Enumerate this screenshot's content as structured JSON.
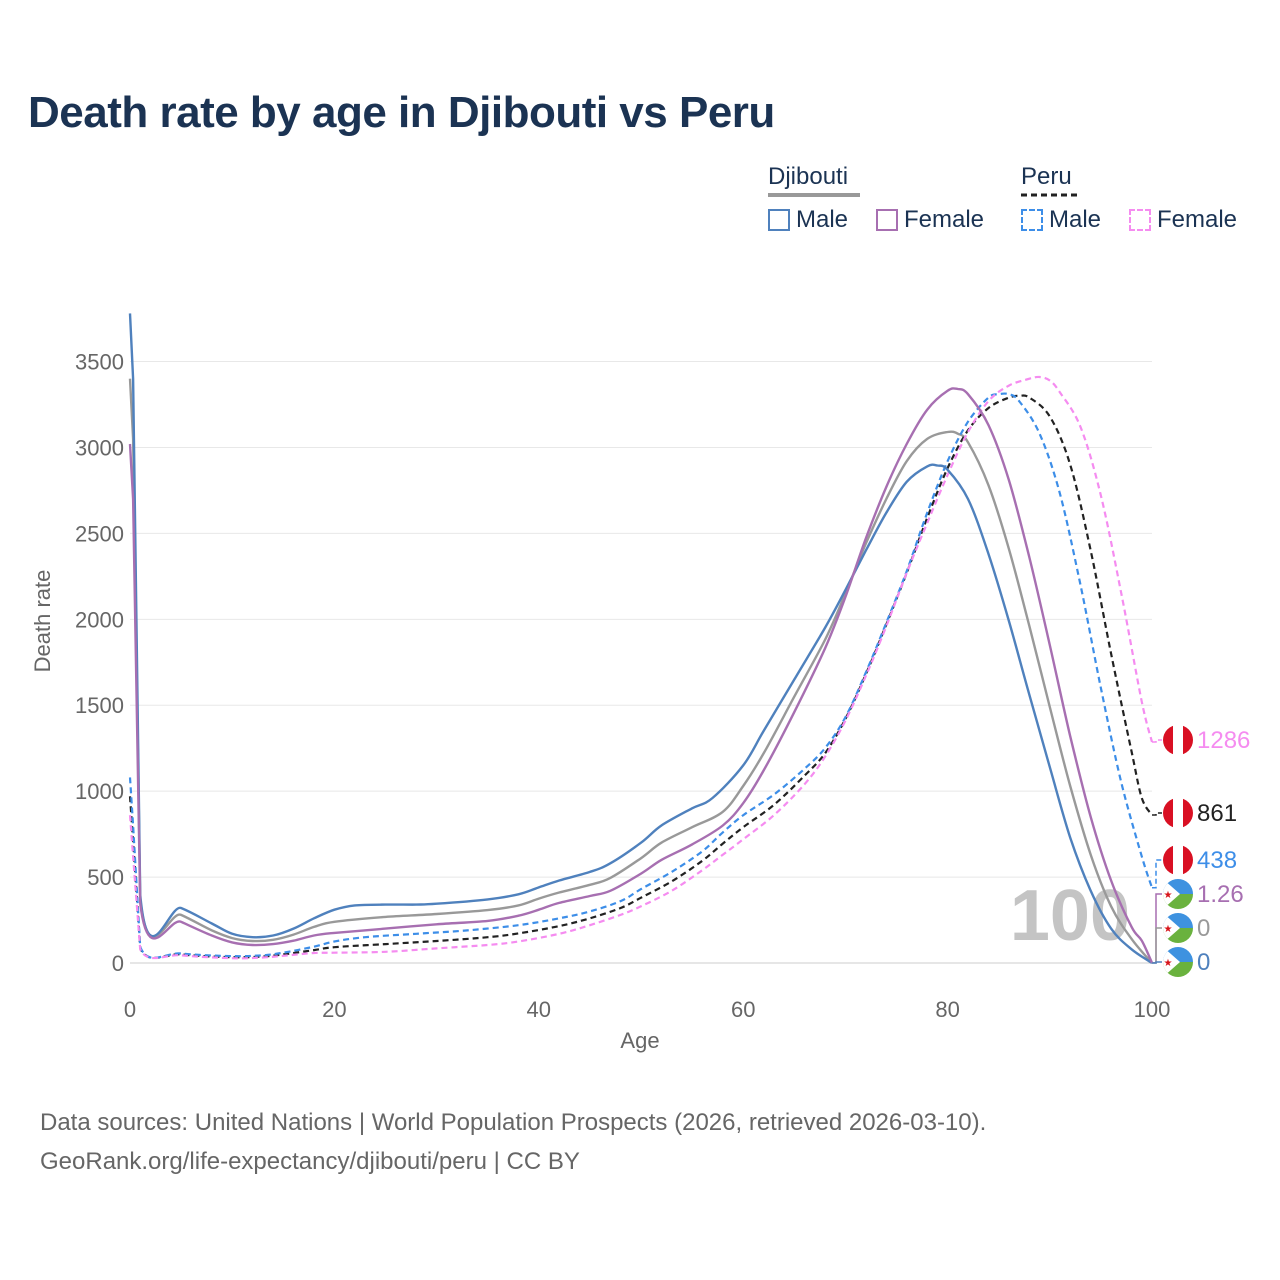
{
  "title": "Death rate by age in Djibouti vs Peru",
  "legend": {
    "groups": [
      {
        "country": "Djibouti",
        "line_color": "#999999",
        "line_style": "solid",
        "items": [
          {
            "label": "Male",
            "color": "#4f81bd",
            "style": "solid"
          },
          {
            "label": "Female",
            "color": "#a76fb1",
            "style": "solid"
          }
        ]
      },
      {
        "country": "Peru",
        "line_color": "#222222",
        "line_style": "dashed",
        "items": [
          {
            "label": "Male",
            "color": "#3d8ee8",
            "style": "dashed"
          },
          {
            "label": "Female",
            "color": "#f58cf0",
            "style": "dashed"
          }
        ]
      }
    ]
  },
  "current_age": "100",
  "end_labels": [
    {
      "text": "1286",
      "color": "#f58cf0",
      "flag": "peru-flag-icon",
      "value": 1286
    },
    {
      "text": "861",
      "color": "#222222",
      "flag": "peru-flag-icon",
      "value": 861
    },
    {
      "text": "438",
      "color": "#3d8ee8",
      "flag": "peru-flag-icon",
      "value": 438
    },
    {
      "text": "1.26",
      "color": "#a76fb1",
      "flag": "djibouti-flag-icon",
      "value": 1.26
    },
    {
      "text": "0",
      "color": "#999999",
      "flag": "djibouti-flag-icon",
      "value": 0
    },
    {
      "text": "0",
      "color": "#4f81bd",
      "flag": "djibouti-flag-icon",
      "value": 0
    }
  ],
  "footer": {
    "line1": "Data sources: United Nations | World Population Prospects (2026, retrieved 2026-03-10).",
    "line2": "GeoRank.org/life-expectancy/djibouti/peru | CC BY"
  },
  "chart_data": {
    "type": "line",
    "title": "Death rate by age in Djibouti vs Peru",
    "xlabel": "Age",
    "ylabel": "Death rate",
    "xlim": [
      0,
      100
    ],
    "ylim": [
      0,
      3800
    ],
    "xticks": [
      0,
      20,
      40,
      60,
      80,
      100
    ],
    "yticks": [
      0,
      500,
      1000,
      1500,
      2000,
      2500,
      3000,
      3500
    ],
    "grid": true,
    "series": [
      {
        "name": "Djibouti Male",
        "color": "#4f81bd",
        "dash": false,
        "points": [
          [
            0,
            3780
          ],
          [
            0.3,
            3400
          ],
          [
            1,
            400
          ],
          [
            5,
            320
          ],
          [
            8,
            230
          ],
          [
            10,
            170
          ],
          [
            12,
            150
          ],
          [
            14,
            160
          ],
          [
            16,
            200
          ],
          [
            18,
            260
          ],
          [
            20,
            310
          ],
          [
            22,
            335
          ],
          [
            25,
            340
          ],
          [
            28,
            340
          ],
          [
            30,
            345
          ],
          [
            35,
            370
          ],
          [
            38,
            400
          ],
          [
            40,
            440
          ],
          [
            42,
            480
          ],
          [
            45,
            530
          ],
          [
            47,
            580
          ],
          [
            50,
            700
          ],
          [
            52,
            800
          ],
          [
            55,
            900
          ],
          [
            57,
            960
          ],
          [
            60,
            1150
          ],
          [
            62,
            1350
          ],
          [
            65,
            1650
          ],
          [
            68,
            1950
          ],
          [
            70,
            2170
          ],
          [
            72,
            2400
          ],
          [
            74,
            2620
          ],
          [
            76,
            2800
          ],
          [
            78,
            2890
          ],
          [
            79,
            2895
          ],
          [
            80,
            2870
          ],
          [
            82,
            2700
          ],
          [
            84,
            2380
          ],
          [
            86,
            1990
          ],
          [
            88,
            1560
          ],
          [
            90,
            1140
          ],
          [
            92,
            730
          ],
          [
            94,
            420
          ],
          [
            96,
            200
          ],
          [
            98,
            80
          ],
          [
            100,
            0
          ]
        ]
      },
      {
        "name": "Djibouti Female",
        "color": "#a76fb1",
        "dash": false,
        "points": [
          [
            0,
            3020
          ],
          [
            0.3,
            2700
          ],
          [
            1,
            350
          ],
          [
            5,
            240
          ],
          [
            8,
            160
          ],
          [
            10,
            120
          ],
          [
            12,
            105
          ],
          [
            14,
            110
          ],
          [
            16,
            130
          ],
          [
            18,
            160
          ],
          [
            20,
            175
          ],
          [
            25,
            200
          ],
          [
            30,
            225
          ],
          [
            35,
            245
          ],
          [
            38,
            275
          ],
          [
            40,
            310
          ],
          [
            42,
            350
          ],
          [
            45,
            390
          ],
          [
            47,
            420
          ],
          [
            50,
            520
          ],
          [
            52,
            600
          ],
          [
            55,
            690
          ],
          [
            58,
            800
          ],
          [
            60,
            930
          ],
          [
            62,
            1120
          ],
          [
            65,
            1460
          ],
          [
            68,
            1830
          ],
          [
            70,
            2130
          ],
          [
            72,
            2470
          ],
          [
            74,
            2770
          ],
          [
            76,
            3020
          ],
          [
            78,
            3220
          ],
          [
            80,
            3330
          ],
          [
            81,
            3340
          ],
          [
            82,
            3310
          ],
          [
            84,
            3130
          ],
          [
            86,
            2810
          ],
          [
            88,
            2360
          ],
          [
            90,
            1850
          ],
          [
            92,
            1320
          ],
          [
            94,
            850
          ],
          [
            96,
            480
          ],
          [
            98,
            210
          ],
          [
            99,
            130
          ],
          [
            100,
            1.26
          ]
        ]
      },
      {
        "name": "Djibouti Total",
        "color": "#999999",
        "dash": false,
        "points": [
          [
            0,
            3400
          ],
          [
            0.3,
            3050
          ],
          [
            1,
            380
          ],
          [
            5,
            280
          ],
          [
            8,
            190
          ],
          [
            10,
            145
          ],
          [
            12,
            128
          ],
          [
            14,
            135
          ],
          [
            16,
            165
          ],
          [
            18,
            210
          ],
          [
            20,
            240
          ],
          [
            25,
            268
          ],
          [
            30,
            285
          ],
          [
            35,
            308
          ],
          [
            38,
            335
          ],
          [
            40,
            375
          ],
          [
            42,
            410
          ],
          [
            45,
            455
          ],
          [
            47,
            495
          ],
          [
            50,
            610
          ],
          [
            52,
            700
          ],
          [
            55,
            790
          ],
          [
            58,
            880
          ],
          [
            60,
            1030
          ],
          [
            62,
            1220
          ],
          [
            65,
            1550
          ],
          [
            68,
            1880
          ],
          [
            70,
            2150
          ],
          [
            72,
            2440
          ],
          [
            74,
            2700
          ],
          [
            76,
            2920
          ],
          [
            78,
            3050
          ],
          [
            80,
            3090
          ],
          [
            81,
            3080
          ],
          [
            82,
            3030
          ],
          [
            84,
            2780
          ],
          [
            86,
            2410
          ],
          [
            88,
            1960
          ],
          [
            90,
            1490
          ],
          [
            92,
            1030
          ],
          [
            94,
            630
          ],
          [
            96,
            330
          ],
          [
            98,
            140
          ],
          [
            100,
            0
          ]
        ]
      },
      {
        "name": "Peru Male",
        "color": "#3d8ee8",
        "dash": true,
        "points": [
          [
            0,
            1080
          ],
          [
            0.3,
            800
          ],
          [
            1,
            95
          ],
          [
            5,
            55
          ],
          [
            10,
            40
          ],
          [
            13,
            45
          ],
          [
            15,
            60
          ],
          [
            18,
            95
          ],
          [
            20,
            125
          ],
          [
            23,
            150
          ],
          [
            28,
            170
          ],
          [
            33,
            190
          ],
          [
            38,
            220
          ],
          [
            42,
            260
          ],
          [
            45,
            300
          ],
          [
            48,
            360
          ],
          [
            50,
            430
          ],
          [
            53,
            530
          ],
          [
            56,
            650
          ],
          [
            58,
            760
          ],
          [
            60,
            860
          ],
          [
            63,
            980
          ],
          [
            66,
            1130
          ],
          [
            68,
            1250
          ],
          [
            70,
            1430
          ],
          [
            72,
            1690
          ],
          [
            74,
            1980
          ],
          [
            76,
            2280
          ],
          [
            78,
            2620
          ],
          [
            80,
            2920
          ],
          [
            82,
            3150
          ],
          [
            84,
            3290
          ],
          [
            85,
            3310
          ],
          [
            86,
            3310
          ],
          [
            87,
            3270
          ],
          [
            89,
            3080
          ],
          [
            91,
            2730
          ],
          [
            93,
            2200
          ],
          [
            95,
            1600
          ],
          [
            97,
            1050
          ],
          [
            99,
            620
          ],
          [
            100,
            438
          ]
        ]
      },
      {
        "name": "Peru Female",
        "color": "#f58cf0",
        "dash": true,
        "points": [
          [
            0,
            860
          ],
          [
            0.3,
            620
          ],
          [
            1,
            80
          ],
          [
            5,
            45
          ],
          [
            10,
            28
          ],
          [
            13,
            32
          ],
          [
            15,
            42
          ],
          [
            18,
            58
          ],
          [
            20,
            60
          ],
          [
            25,
            65
          ],
          [
            30,
            85
          ],
          [
            35,
            105
          ],
          [
            38,
            125
          ],
          [
            42,
            170
          ],
          [
            45,
            220
          ],
          [
            48,
            280
          ],
          [
            50,
            330
          ],
          [
            53,
            420
          ],
          [
            56,
            540
          ],
          [
            58,
            630
          ],
          [
            60,
            720
          ],
          [
            63,
            860
          ],
          [
            66,
            1040
          ],
          [
            68,
            1200
          ],
          [
            70,
            1410
          ],
          [
            72,
            1670
          ],
          [
            74,
            1960
          ],
          [
            76,
            2270
          ],
          [
            78,
            2560
          ],
          [
            80,
            2840
          ],
          [
            82,
            3090
          ],
          [
            84,
            3270
          ],
          [
            86,
            3360
          ],
          [
            88,
            3400
          ],
          [
            89,
            3410
          ],
          [
            90,
            3390
          ],
          [
            91,
            3320
          ],
          [
            93,
            3120
          ],
          [
            95,
            2720
          ],
          [
            97,
            2150
          ],
          [
            99,
            1520
          ],
          [
            100,
            1286
          ]
        ]
      },
      {
        "name": "Peru Total",
        "color": "#222222",
        "dash": true,
        "points": [
          [
            0,
            970
          ],
          [
            0.3,
            710
          ],
          [
            1,
            88
          ],
          [
            5,
            50
          ],
          [
            10,
            34
          ],
          [
            13,
            38
          ],
          [
            15,
            50
          ],
          [
            18,
            75
          ],
          [
            20,
            92
          ],
          [
            25,
            110
          ],
          [
            30,
            128
          ],
          [
            35,
            150
          ],
          [
            38,
            172
          ],
          [
            42,
            215
          ],
          [
            45,
            260
          ],
          [
            48,
            320
          ],
          [
            50,
            380
          ],
          [
            53,
            475
          ],
          [
            56,
            595
          ],
          [
            58,
            695
          ],
          [
            60,
            790
          ],
          [
            63,
            920
          ],
          [
            66,
            1090
          ],
          [
            68,
            1220
          ],
          [
            70,
            1420
          ],
          [
            72,
            1680
          ],
          [
            74,
            1970
          ],
          [
            76,
            2270
          ],
          [
            78,
            2590
          ],
          [
            80,
            2880
          ],
          [
            82,
            3100
          ],
          [
            84,
            3230
          ],
          [
            86,
            3290
          ],
          [
            87,
            3300
          ],
          [
            88,
            3290
          ],
          [
            90,
            3180
          ],
          [
            92,
            2900
          ],
          [
            94,
            2400
          ],
          [
            96,
            1800
          ],
          [
            98,
            1230
          ],
          [
            99,
            960
          ],
          [
            100,
            861
          ]
        ]
      }
    ]
  }
}
